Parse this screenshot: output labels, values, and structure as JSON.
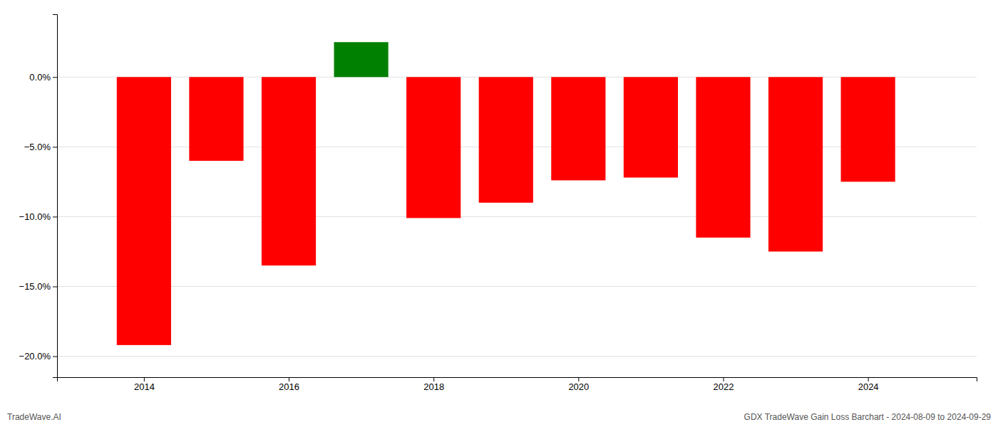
{
  "chart_data": {
    "type": "bar",
    "x": [
      2014,
      2015,
      2016,
      2017,
      2018,
      2019,
      2020,
      2021,
      2022,
      2023,
      2024
    ],
    "values": [
      -0.192,
      -0.06,
      -0.135,
      0.025,
      -0.101,
      -0.09,
      -0.074,
      -0.072,
      -0.115,
      -0.125,
      -0.075
    ],
    "colors": [
      "#ff0000",
      "#ff0000",
      "#ff0000",
      "#008000",
      "#ff0000",
      "#ff0000",
      "#ff0000",
      "#ff0000",
      "#ff0000",
      "#ff0000",
      "#ff0000"
    ],
    "xlim": [
      2012.8,
      2025.5
    ],
    "xticks": [
      2014,
      2016,
      2018,
      2020,
      2022,
      2024
    ],
    "ylim": [
      -0.215,
      0.045
    ],
    "yticks": [
      {
        "value": 0.0,
        "label": "0.0%"
      },
      {
        "value": -0.05,
        "label": "−5.0%"
      },
      {
        "value": -0.1,
        "label": "−10.0%"
      },
      {
        "value": -0.15,
        "label": "−15.0%"
      },
      {
        "value": -0.2,
        "label": "−20.0%"
      }
    ],
    "grid": true,
    "annotations": [
      "TradeWave.AI",
      "GDX TradeWave Gain Loss Barchart - 2024-08-09 to 2024-09-29"
    ]
  }
}
